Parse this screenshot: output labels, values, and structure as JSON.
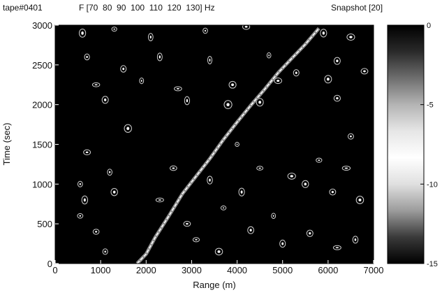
{
  "chart_data": {
    "type": "heatmap",
    "header": {
      "tape": "tape#0401",
      "freq_label": "F [70  80  90  100  110  120  130] Hz",
      "snapshot": "Snapshot [20]"
    },
    "xlabel": "Range (m)",
    "ylabel": "Time (sec)",
    "xlim": [
      0,
      7000
    ],
    "ylim": [
      0,
      3000
    ],
    "xticks": [
      "0",
      "1000",
      "2000",
      "3000",
      "4000",
      "5000",
      "6000",
      "7000"
    ],
    "yticks": [
      "0",
      "500",
      "1000",
      "1500",
      "2000",
      "2500",
      "3000"
    ],
    "colorbar": {
      "range": [
        -15,
        0
      ],
      "ticks": [
        "0",
        "-5",
        "-10",
        "-15"
      ],
      "tick_values": [
        0,
        -5,
        -10,
        -15
      ]
    },
    "colormap": [
      "#000000",
      "#2a2a2a",
      "#6e6e6e",
      "#b4b4b4",
      "#e6e6e6",
      "#ffffff",
      "#e0e0e0",
      "#9c9c9c",
      "#3a3a3a",
      "#000000"
    ],
    "striation": {
      "range": [
        1800,
        2000,
        2200,
        2500,
        2800,
        3100,
        3400,
        3700,
        4000,
        4300,
        4600,
        4900,
        5200,
        5500,
        5800
      ],
      "time": [
        0,
        120,
        330,
        600,
        880,
        1100,
        1320,
        1560,
        1780,
        1990,
        2190,
        2400,
        2580,
        2760,
        2960
      ]
    },
    "speckles": [
      {
        "x": 600,
        "y": 2900
      },
      {
        "x": 1300,
        "y": 2950
      },
      {
        "x": 2100,
        "y": 2850
      },
      {
        "x": 3300,
        "y": 2930
      },
      {
        "x": 4200,
        "y": 2980
      },
      {
        "x": 5900,
        "y": 2900
      },
      {
        "x": 6500,
        "y": 2850
      },
      {
        "x": 700,
        "y": 2600
      },
      {
        "x": 1500,
        "y": 2450
      },
      {
        "x": 2300,
        "y": 2600
      },
      {
        "x": 3400,
        "y": 2560
      },
      {
        "x": 4700,
        "y": 2620
      },
      {
        "x": 5300,
        "y": 2400
      },
      {
        "x": 6200,
        "y": 2550
      },
      {
        "x": 6800,
        "y": 2420
      },
      {
        "x": 900,
        "y": 2250
      },
      {
        "x": 1900,
        "y": 2300
      },
      {
        "x": 2700,
        "y": 2200
      },
      {
        "x": 3900,
        "y": 2250
      },
      {
        "x": 4900,
        "y": 2300
      },
      {
        "x": 6000,
        "y": 2320
      },
      {
        "x": 1100,
        "y": 2060
      },
      {
        "x": 2900,
        "y": 2050
      },
      {
        "x": 4500,
        "y": 2030
      },
      {
        "x": 6200,
        "y": 2080
      },
      {
        "x": 700,
        "y": 1400
      },
      {
        "x": 1200,
        "y": 1150
      },
      {
        "x": 550,
        "y": 1000
      },
      {
        "x": 650,
        "y": 800
      },
      {
        "x": 550,
        "y": 600
      },
      {
        "x": 1300,
        "y": 900
      },
      {
        "x": 2300,
        "y": 800
      },
      {
        "x": 2600,
        "y": 1200
      },
      {
        "x": 3400,
        "y": 1050
      },
      {
        "x": 3700,
        "y": 700
      },
      {
        "x": 4100,
        "y": 900
      },
      {
        "x": 4500,
        "y": 1200
      },
      {
        "x": 4800,
        "y": 600
      },
      {
        "x": 5200,
        "y": 1100
      },
      {
        "x": 5500,
        "y": 1000
      },
      {
        "x": 5800,
        "y": 1300
      },
      {
        "x": 6100,
        "y": 900
      },
      {
        "x": 6400,
        "y": 1200
      },
      {
        "x": 6700,
        "y": 800
      },
      {
        "x": 3100,
        "y": 300
      },
      {
        "x": 3600,
        "y": 150
      },
      {
        "x": 4300,
        "y": 420
      },
      {
        "x": 5000,
        "y": 250
      },
      {
        "x": 5600,
        "y": 380
      },
      {
        "x": 6200,
        "y": 200
      },
      {
        "x": 6600,
        "y": 300
      },
      {
        "x": 900,
        "y": 400
      },
      {
        "x": 1100,
        "y": 150
      },
      {
        "x": 2900,
        "y": 500
      },
      {
        "x": 4000,
        "y": 1500
      },
      {
        "x": 3800,
        "y": 2000
      },
      {
        "x": 1600,
        "y": 1700
      },
      {
        "x": 6500,
        "y": 1600
      }
    ]
  }
}
